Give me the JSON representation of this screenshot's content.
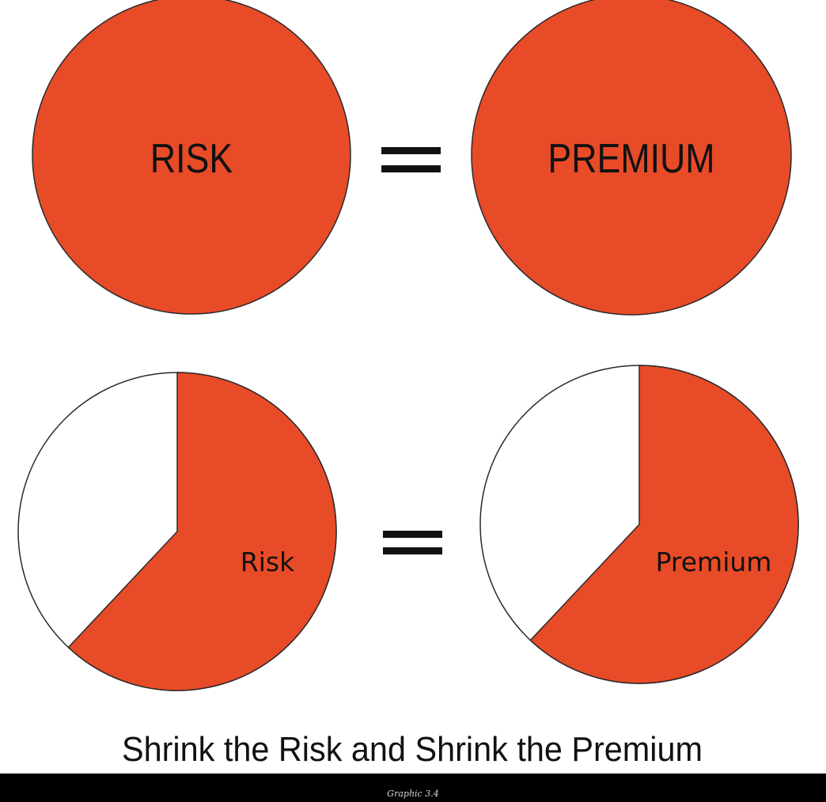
{
  "colors": {
    "fill": "#e84b28",
    "stroke": "#2a2a2a",
    "text": "#111111",
    "background": "#ffffff",
    "footer_background": "#000000"
  },
  "top_row": {
    "left_label": "RISK",
    "operator": "=",
    "right_label": "PREMIUM"
  },
  "bottom_row": {
    "left_label": "Risk",
    "operator": "=",
    "right_label": "Premium",
    "filled_share": 0.62
  },
  "caption": "Shrink the Risk and Shrink the Premium",
  "footer": {
    "caption": "Graphic 3.4"
  }
}
